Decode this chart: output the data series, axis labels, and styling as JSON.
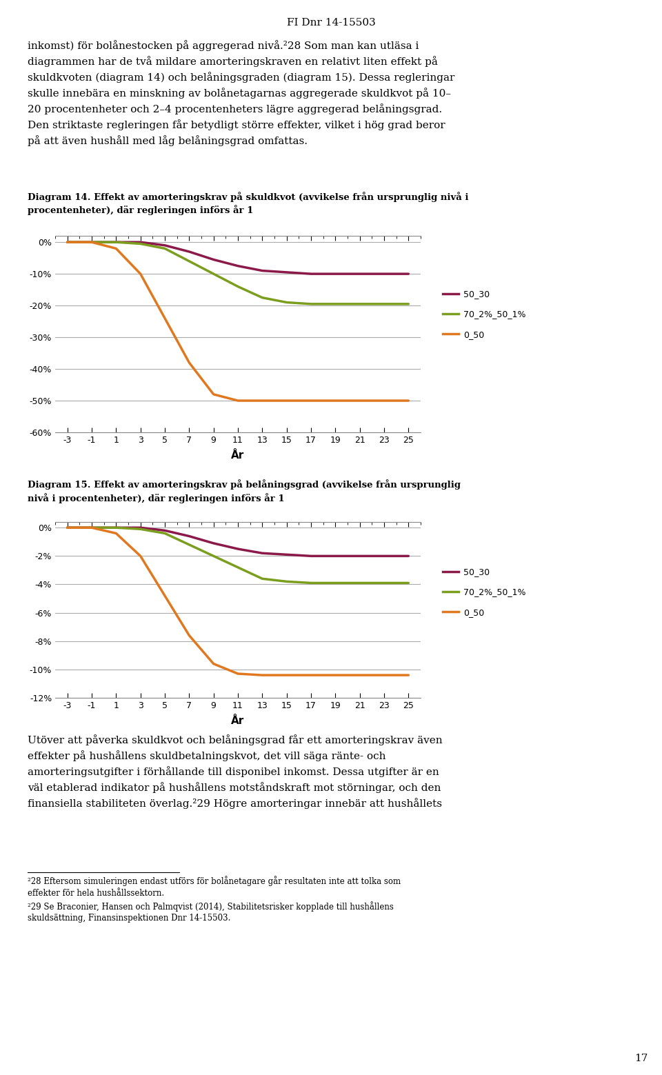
{
  "page_header": "FI Dnr 14-15503",
  "diagram14_title": "Diagram 14. Effekt av amorteringskrav på skuldkvot (avvikelse från ursprunglig nivå i\nprocentenheter), där regleringen införs år 1",
  "diagram15_title": "Diagram 15. Effekt av amorteringskrav på belåningsgrad (avvikelse från ursprunglig\nnivå i procentenheter), där regleringen införs år 1",
  "xlabel": "År",
  "x_ticks": [
    -3,
    -1,
    1,
    3,
    5,
    7,
    9,
    11,
    13,
    15,
    17,
    19,
    21,
    23,
    25
  ],
  "text_top": "inkomst) för bolånestocken på aggregerad nivå.²⁸ Som man kan utläsa i diagrammen har de två mildare amorteringskraven en relativt liten effekt på skuldkvoten (diagram 14) och belåningsgraden (diagram 15). Dessa regleringar skulle innebära en minskning av bolånetagarnas aggregerade skuldkvot på 10– 20 procentenheter och 2–4 procentenheters lägre aggregerad belåningsgrad. Den striktaste regleringen får betydligt större effekter, vilket i hög grad beror på att även hushåll med låg belåningsgrad omfattas.",
  "text_footer": "Utöver att påverka skuldkvot och belåningsgrad får ett amorteringskrav även effekter på hushållens skuldbetalningskvot, det vill säga ränte- och amorteringsutgifter i förhållande till disponibel inkomst. Dessa utgifter är en väl etablerad indikator på hushållens motståndskraft mot störningar, och den finansiella stabiliteten överlag.²⁹ Högre amorteringar innebär att hushållets",
  "footnote1": "²⁸ Eftersom simuleringen endast utförs för bolånetagare går resultaten inte att tolka som effekter för hela hushållssektorn.",
  "footnote2": "²⁹ Se Braconier, Hansen och Palmqvist (2014), Stabilitetsrisker kopplade till hushållens skuldsättning, Finansinspektionen Dnr 14-15503.",
  "page_number": "17",
  "chart1": {
    "ylim": [
      -0.6,
      0.02
    ],
    "yticks": [
      0.0,
      -0.1,
      -0.2,
      -0.3,
      -0.4,
      -0.5,
      -0.6
    ],
    "ytick_labels": [
      "0%",
      "-10%",
      "-20%",
      "-30%",
      "-40%",
      "-50%",
      "-60%"
    ],
    "series": {
      "50_30": {
        "color": "#8B1A4A",
        "x": [
          -3,
          -1,
          1,
          3,
          5,
          7,
          9,
          11,
          13,
          15,
          17,
          19,
          21,
          23,
          25
        ],
        "y": [
          0,
          0,
          0,
          0,
          -0.01,
          -0.03,
          -0.055,
          -0.075,
          -0.09,
          -0.095,
          -0.1,
          -0.1,
          -0.1,
          -0.1,
          -0.1
        ]
      },
      "70_2%_50_1%": {
        "color": "#7B9E1E",
        "x": [
          -3,
          -1,
          1,
          3,
          5,
          7,
          9,
          11,
          13,
          15,
          17,
          19,
          21,
          23,
          25
        ],
        "y": [
          0,
          0,
          0,
          -0.005,
          -0.02,
          -0.06,
          -0.1,
          -0.14,
          -0.175,
          -0.19,
          -0.195,
          -0.195,
          -0.195,
          -0.195,
          -0.195
        ]
      },
      "0_50": {
        "color": "#E07820",
        "x": [
          -3,
          -1,
          1,
          3,
          5,
          7,
          9,
          11,
          13,
          15,
          17,
          19,
          21,
          23,
          25
        ],
        "y": [
          0,
          0,
          -0.02,
          -0.1,
          -0.24,
          -0.38,
          -0.48,
          -0.5,
          -0.5,
          -0.5,
          -0.5,
          -0.5,
          -0.5,
          -0.5,
          -0.5
        ]
      }
    }
  },
  "chart2": {
    "ylim": [
      -0.12,
      0.004
    ],
    "yticks": [
      0.0,
      -0.02,
      -0.04,
      -0.06,
      -0.08,
      -0.1,
      -0.12
    ],
    "ytick_labels": [
      "0%",
      "-2%",
      "-4%",
      "-6%",
      "-8%",
      "-10%",
      "-12%"
    ],
    "series": {
      "50_30": {
        "color": "#8B1A4A",
        "x": [
          -3,
          -1,
          1,
          3,
          5,
          7,
          9,
          11,
          13,
          15,
          17,
          19,
          21,
          23,
          25
        ],
        "y": [
          0,
          0,
          0,
          0,
          -0.002,
          -0.006,
          -0.011,
          -0.015,
          -0.018,
          -0.019,
          -0.02,
          -0.02,
          -0.02,
          -0.02,
          -0.02
        ]
      },
      "70_2%_50_1%": {
        "color": "#7B9E1E",
        "x": [
          -3,
          -1,
          1,
          3,
          5,
          7,
          9,
          11,
          13,
          15,
          17,
          19,
          21,
          23,
          25
        ],
        "y": [
          0,
          0,
          0,
          -0.001,
          -0.004,
          -0.012,
          -0.02,
          -0.028,
          -0.036,
          -0.038,
          -0.039,
          -0.039,
          -0.039,
          -0.039,
          -0.039
        ]
      },
      "0_50": {
        "color": "#E07820",
        "x": [
          -3,
          -1,
          1,
          3,
          5,
          7,
          9,
          11,
          13,
          15,
          17,
          19,
          21,
          23,
          25
        ],
        "y": [
          0,
          0,
          -0.004,
          -0.02,
          -0.048,
          -0.076,
          -0.096,
          -0.103,
          -0.104,
          -0.104,
          -0.104,
          -0.104,
          -0.104,
          -0.104,
          -0.104
        ]
      }
    }
  },
  "line_width": 2.5,
  "grid_color": "#AAAAAA",
  "grid_linewidth": 0.8,
  "bg_color": "#FFFFFF",
  "text_color": "#000000",
  "legend_fontsize": 9,
  "body_fontsize": 11,
  "title_fontsize": 9.5,
  "footnote_fontsize": 8.5,
  "axis_tick_fontsize": 9
}
